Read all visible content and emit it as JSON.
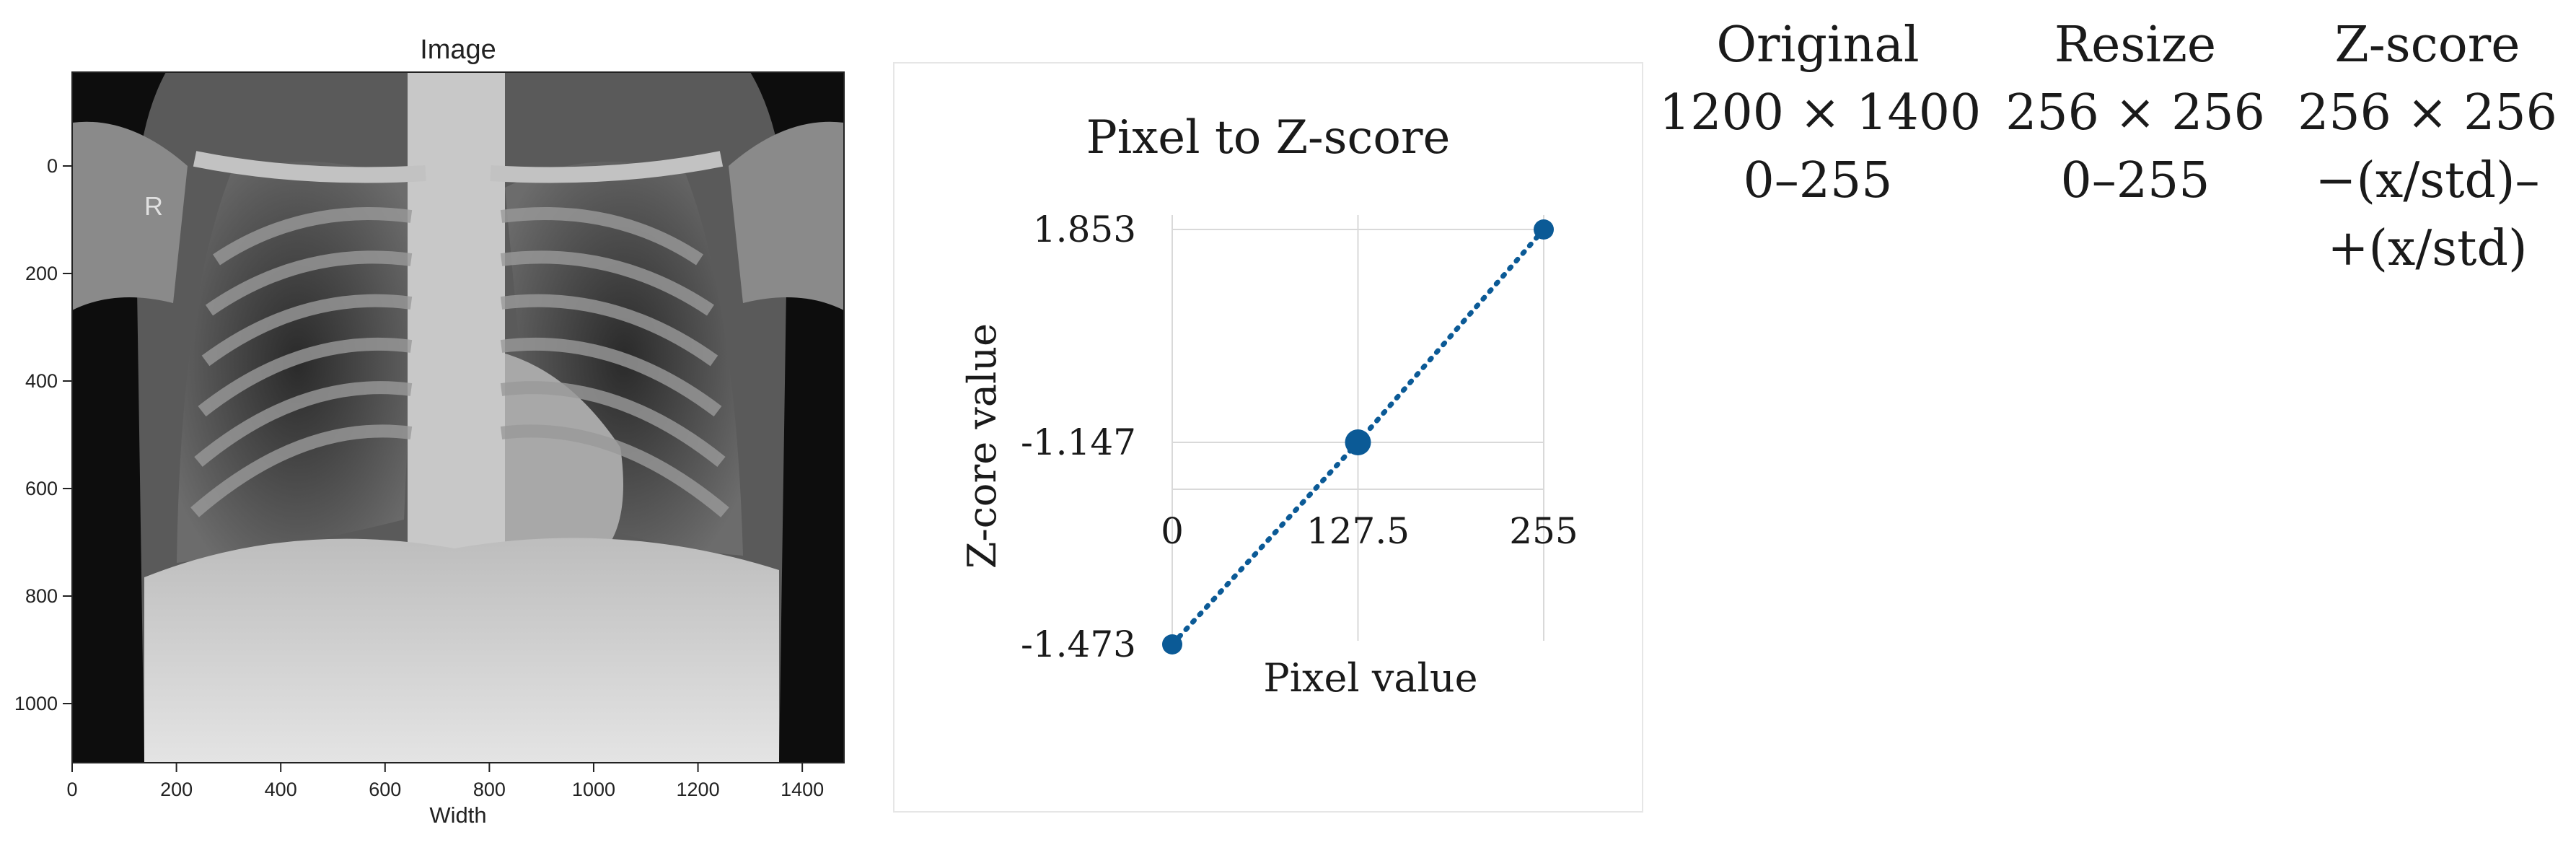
{
  "xray": {
    "title": "Image",
    "side_marker": "R",
    "xlabel": "Width",
    "x_ticks": [
      "0",
      "200",
      "400",
      "600",
      "800",
      "1000",
      "1200",
      "1400"
    ],
    "y_ticks": [
      "0",
      "200",
      "400",
      "600",
      "800",
      "1000"
    ]
  },
  "chart_data": {
    "type": "line",
    "title": "Pixel to Z-score",
    "xlabel": "Pixel value",
    "ylabel": "Z-core value",
    "x_tick_labels": [
      "0",
      "127.5",
      "255"
    ],
    "y_tick_labels": [
      "1.853",
      "-1.147",
      "-1.473"
    ],
    "xlim": [
      0,
      255
    ],
    "series": [
      {
        "x": [
          0,
          127.5,
          255
        ],
        "y": [
          -1.473,
          -1.147,
          1.853
        ],
        "color": "#0b5a96",
        "style": "dotted"
      }
    ]
  },
  "columns": [
    {
      "header": "Original",
      "lines": [
        "1200 × 1400",
        "0–255"
      ]
    },
    {
      "header": "Resize",
      "lines": [
        "256 × 256",
        "0–255"
      ]
    },
    {
      "header": "Z-score",
      "lines": [
        "256 × 256",
        "−(x/std)–",
        "+(x/std)"
      ]
    }
  ]
}
